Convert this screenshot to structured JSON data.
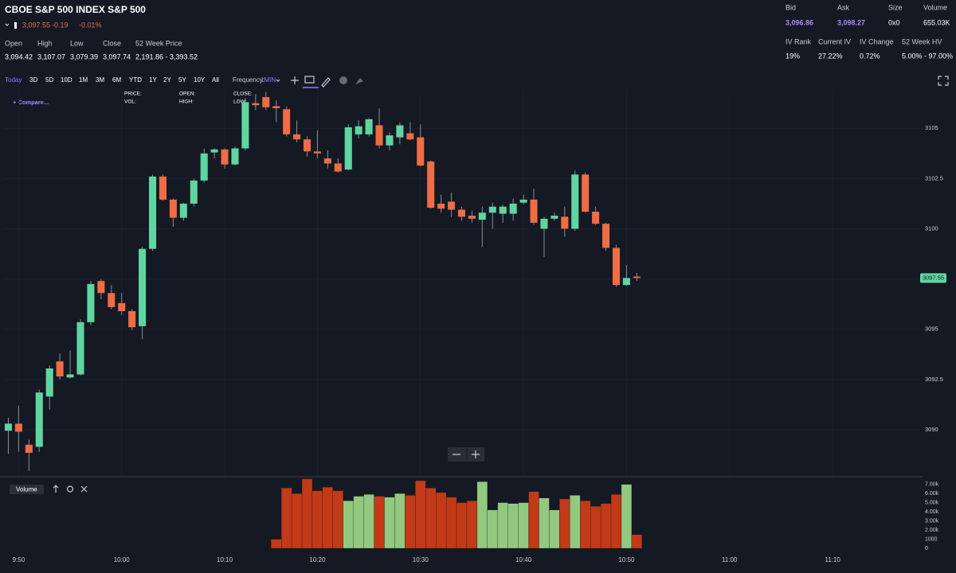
{
  "header": {
    "title": "CBOE S&P 500 INDEX S&P 500",
    "quote": {
      "price": "3,097.55",
      "change": "-0.19",
      "percent": "-0.01%"
    }
  },
  "stats": [
    {
      "label": "Open",
      "value": "3,094.42"
    },
    {
      "label": "High",
      "value": "3,107.07"
    },
    {
      "label": "Low",
      "value": "3,079.39"
    },
    {
      "label": "Close",
      "value": "3,097.74"
    },
    {
      "label": "52 Week Price",
      "value": "2,191.86 - 3,393.52"
    }
  ],
  "market": [
    {
      "label": "Bid",
      "value": "3,096.86"
    },
    {
      "label": "Ask",
      "value": "3,098.27"
    },
    {
      "label": "Size",
      "value": "0x0"
    },
    {
      "label": "Volume",
      "value": "655.03K"
    }
  ],
  "volatility": [
    {
      "label": "IV Rank",
      "value": "19%"
    },
    {
      "label": "Current IV",
      "value": "27.22%"
    },
    {
      "label": "IV Change",
      "value": "0.72%"
    },
    {
      "label": "52 Week HV",
      "value": "5.00% - 97.00%"
    }
  ],
  "toolbar": {
    "ranges": [
      "Today",
      "3D",
      "5D",
      "10D",
      "1M",
      "3M",
      "6M",
      "YTD",
      "1Y",
      "2Y",
      "5Y",
      "10Y",
      "All"
    ],
    "frequency_label": "Frequency:",
    "frequency": "1MIN"
  },
  "chart_tools": {
    "compare": "+ Compare...",
    "readout": [
      "PRICE:",
      "VOL:",
      "OPEN:",
      "HIGH:",
      "CLOSE:",
      "LOW:"
    ],
    "volume_pane": "Volume"
  },
  "chart_data": {
    "type": "candlestick",
    "open": [
      3089.95,
      3090.3,
      3089.25,
      3089.15,
      3091.65,
      3093.4,
      3092.6,
      3092.75,
      3095.35,
      3097.4,
      3096.8,
      3096.3,
      3095.9,
      3095.15,
      3099.0,
      3102.6,
      3101.45,
      3100.55,
      3101.25,
      3102.4,
      3103.8,
      3103.95,
      3103.2,
      3104.0,
      3106.25,
      3106.55,
      3106.1,
      3105.95,
      3104.7,
      3104.45,
      3103.85,
      3103.5,
      3103.25,
      3102.95,
      3104.7,
      3104.7,
      3105.15,
      3104.15,
      3104.55,
      3104.75,
      3104.55,
      3103.35,
      3101.25,
      3101.35,
      3100.95,
      3100.65,
      3100.45,
      3100.8,
      3100.75,
      3100.75,
      3101.3,
      3101.45,
      3100.0,
      3100.5,
      3100.6,
      3100.0,
      3102.7,
      3100.85,
      3100.25,
      3099.05,
      3097.2,
      3097.62
    ],
    "high": [
      3090.6,
      3091.2,
      3089.5,
      3092.0,
      3093.2,
      3093.8,
      3093.95,
      3095.5,
      3097.4,
      3097.5,
      3097.2,
      3096.8,
      3096.0,
      3099.1,
      3102.7,
      3102.7,
      3101.5,
      3101.3,
      3102.5,
      3104.0,
      3104.0,
      3104.0,
      3104.1,
      3106.5,
      3106.7,
      3106.8,
      3106.4,
      3106.1,
      3105.4,
      3104.6,
      3104.9,
      3103.9,
      3103.5,
      3105.2,
      3105.4,
      3105.5,
      3106.0,
      3104.8,
      3105.3,
      3105.3,
      3105.2,
      3103.4,
      3101.7,
      3101.8,
      3101.1,
      3100.9,
      3101.1,
      3101.3,
      3101.2,
      3101.5,
      3101.7,
      3102.0,
      3100.6,
      3100.8,
      3101.1,
      3102.9,
      3102.8,
      3101.1,
      3100.3,
      3099.2,
      3098.2,
      3097.8
    ],
    "low": [
      3088.8,
      3088.9,
      3087.95,
      3088.9,
      3091.0,
      3092.5,
      3092.55,
      3092.7,
      3095.2,
      3096.5,
      3096.0,
      3095.7,
      3094.95,
      3094.5,
      3098.9,
      3101.4,
      3100.1,
      3100.4,
      3101.1,
      3102.3,
      3103.5,
      3103.0,
      3103.15,
      3103.9,
      3105.9,
      3105.9,
      3105.3,
      3104.6,
      3104.3,
      3103.6,
      3103.5,
      3103.0,
      3102.8,
      3102.9,
      3104.5,
      3104.6,
      3104.0,
      3103.9,
      3104.2,
      3104.4,
      3103.1,
      3101.0,
      3100.8,
      3100.6,
      3100.4,
      3100.3,
      3099.1,
      3100.0,
      3100.3,
      3100.4,
      3101.2,
      3100.2,
      3098.6,
      3100.4,
      3099.6,
      3099.9,
      3100.8,
      3100.2,
      3098.9,
      3097.1,
      3097.15,
      3097.4
    ],
    "close": [
      3090.3,
      3089.9,
      3088.85,
      3091.85,
      3093.05,
      3092.65,
      3092.75,
      3095.35,
      3097.25,
      3096.8,
      3096.1,
      3095.9,
      3095.1,
      3099.0,
      3102.6,
      3101.45,
      3100.55,
      3101.25,
      3102.4,
      3103.75,
      3103.95,
      3103.2,
      3104.0,
      3106.3,
      3106.15,
      3106.05,
      3106.0,
      3104.7,
      3104.45,
      3103.85,
      3103.75,
      3103.25,
      3102.85,
      3105.05,
      3105.1,
      3105.45,
      3104.15,
      3104.65,
      3105.15,
      3104.45,
      3103.15,
      3101.05,
      3101.0,
      3100.95,
      3100.6,
      3100.5,
      3100.8,
      3101.1,
      3101.1,
      3101.25,
      3101.45,
      3100.3,
      3100.5,
      3100.65,
      3100.0,
      3102.7,
      3100.85,
      3100.25,
      3099.05,
      3097.2,
      3097.55,
      3097.55
    ],
    "up_color": "#5fd6a1",
    "down_color": "#ef6c45",
    "wick_color": "#8a8f99",
    "xlim": [
      -0.5,
      88.5
    ],
    "xticks": [
      {
        "value": 1,
        "label": "9:50"
      },
      {
        "value": 11,
        "label": "10:00"
      },
      {
        "value": 21,
        "label": "10:10"
      },
      {
        "value": 30,
        "label": "10:20"
      },
      {
        "value": 40,
        "label": "10:30"
      },
      {
        "value": 50,
        "label": "10:40"
      },
      {
        "value": 60,
        "label": "10:50"
      },
      {
        "value": 70,
        "label": "11:00"
      },
      {
        "value": 80,
        "label": "11:10"
      }
    ],
    "ylim": [
      3087.7,
      3106.95
    ],
    "yticks": [
      3090,
      3092.5,
      3095,
      3097.5,
      3100,
      3102.5,
      3105
    ],
    "grid": true,
    "volume": {
      "values": [
        null,
        null,
        null,
        null,
        null,
        null,
        null,
        null,
        null,
        null,
        null,
        null,
        null,
        null,
        null,
        null,
        null,
        null,
        null,
        null,
        null,
        null,
        null,
        null,
        null,
        null,
        1000,
        6600,
        6000,
        7600,
        6300,
        6700,
        6300,
        5200,
        5700,
        5900,
        5700,
        5600,
        6000,
        5800,
        7400,
        6600,
        6100,
        5600,
        5000,
        5200,
        7300,
        4200,
        5000,
        4900,
        5000,
        6200,
        5500,
        4200,
        5400,
        5800,
        5200,
        4600,
        4900,
        5900,
        7000,
        1500
      ],
      "up_color": "#92c97f",
      "down_color": "#c23a17",
      "ylim": [
        0,
        7750
      ],
      "yticks": [
        0,
        1000,
        {
          "value": 2000,
          "label": "2.00k"
        },
        {
          "value": 3000,
          "label": "3.00k"
        },
        {
          "value": 4000,
          "label": "4.00k"
        },
        {
          "value": 5000,
          "label": "5.00k"
        },
        {
          "value": 6000,
          "label": "6.00k"
        },
        {
          "value": 7000,
          "label": "7.00k"
        }
      ]
    }
  }
}
